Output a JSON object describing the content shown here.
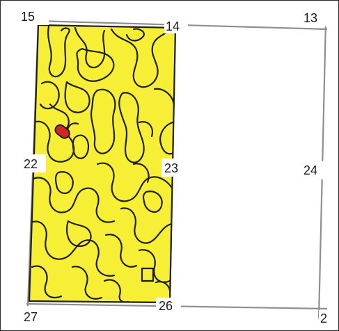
{
  "section_labels": {
    "tl": "15",
    "tm": "14",
    "tr": "13",
    "ml": "22",
    "mm": "23",
    "mr": "24",
    "bl": "27",
    "bm": "26",
    "br": "2"
  },
  "colors": {
    "fill_yellow": "#f7ef35",
    "contour": "#1e1e1e",
    "highlight_red": "#d42424",
    "grid_line": "#8f8f8f"
  }
}
